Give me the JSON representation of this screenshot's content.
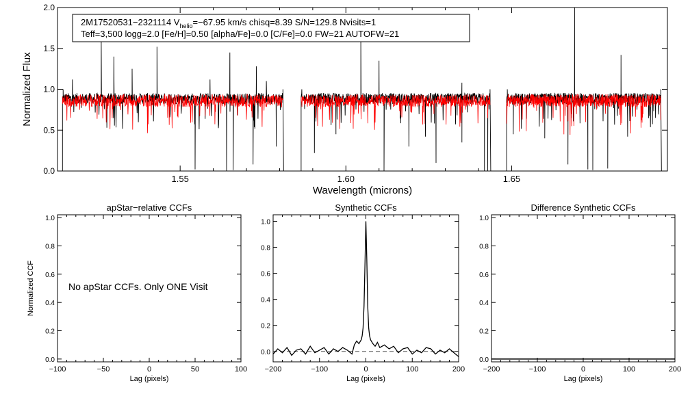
{
  "chart_data": [
    {
      "type": "line",
      "id": "spectrum",
      "ylabel": "Normalized Flux",
      "xlabel": "Wavelength (microns)",
      "xlim": [
        1.513,
        1.697
      ],
      "ylim": [
        0.0,
        2.0
      ],
      "xticks": [
        1.55,
        1.6,
        1.65
      ],
      "xtick_labels": [
        "1.55",
        "1.60",
        "1.65"
      ],
      "yticks": [
        0.0,
        0.5,
        1.0,
        1.5,
        2.0
      ],
      "ytick_labels": [
        "0.0",
        "0.5",
        "1.0",
        "1.5",
        "2.0"
      ],
      "chip_ranges": [
        [
          1.5145,
          1.581
        ],
        [
          1.5865,
          1.6435
        ],
        [
          1.6485,
          1.695
        ]
      ],
      "annotation": {
        "line1_pre": "2M17520531−2321114  V",
        "line1_sub": "helio",
        "line1_post": "=−67.95 km/s  chisq=8.39  S/N=129.8  Nvisits=1",
        "line2": "Teff=3,500 logg=2.0 [Fe/H]=0.50 [alpha/Fe]=0.0 [C/Fe]=0.0 FW=21 AUTOFW=21"
      },
      "series": [
        {
          "name": "observed spectrum",
          "color": "#000000",
          "continuum": 0.92,
          "noise": 0.06
        },
        {
          "name": "synthetic model",
          "color": "#ff0000",
          "continuum": 0.9,
          "noise": 0.07
        }
      ],
      "spikes": [
        [
          1.5175,
          1.12
        ],
        [
          1.5262,
          1.58
        ],
        [
          1.53,
          1.4
        ],
        [
          1.5355,
          1.25
        ],
        [
          1.543,
          1.52
        ],
        [
          1.559,
          1.12
        ],
        [
          1.565,
          1.45
        ],
        [
          1.573,
          1.28
        ],
        [
          1.576,
          1.1
        ],
        [
          1.6045,
          1.58
        ],
        [
          1.61,
          1.35
        ],
        [
          1.635,
          1.08
        ],
        [
          1.646,
          1.7
        ],
        [
          1.669,
          2.0
        ],
        [
          1.683,
          1.42
        ]
      ],
      "dips": [
        [
          1.5545,
          0.02
        ],
        [
          1.564,
          0.0
        ],
        [
          1.566,
          0.01
        ],
        [
          1.572,
          0.08
        ],
        [
          1.579,
          0.3
        ],
        [
          1.5905,
          0.22
        ],
        [
          1.597,
          0.45
        ],
        [
          1.6115,
          0.0
        ],
        [
          1.619,
          0.3
        ],
        [
          1.624,
          0.42
        ],
        [
          1.6272,
          0.1
        ],
        [
          1.635,
          0.35
        ],
        [
          1.6418,
          0.0
        ],
        [
          1.6428,
          0.0
        ],
        [
          1.6505,
          0.45
        ],
        [
          1.66,
          0.4
        ],
        [
          1.667,
          0.08
        ],
        [
          1.673,
          0.02
        ],
        [
          1.6745,
          0.01
        ],
        [
          1.679,
          0.03
        ],
        [
          1.685,
          0.42
        ]
      ]
    },
    {
      "type": "line",
      "id": "apstar",
      "title": "apStar−relative CCFs",
      "xlabel": "Lag (pixels)",
      "ylabel": "Normalized CCF",
      "xlim": [
        -100,
        100
      ],
      "ylim": [
        -0.02,
        1.02
      ],
      "xticks": [
        -100,
        -50,
        0,
        50,
        100
      ],
      "xtick_labels": [
        "−100",
        "−50",
        "0",
        "50",
        "100"
      ],
      "yticks": [
        0.0,
        0.2,
        0.4,
        0.6,
        0.8,
        1.0
      ],
      "ytick_labels": [
        "0.0",
        "0.2",
        "0.4",
        "0.6",
        "0.8",
        "1.0"
      ],
      "note": "No apStar CCFs.  Only ONE Visit",
      "series": []
    },
    {
      "type": "line",
      "id": "synthetic",
      "title": "Synthetic CCFs",
      "xlabel": "Lag (pixels)",
      "xlim": [
        -200,
        200
      ],
      "ylim": [
        -0.08,
        1.05
      ],
      "xticks": [
        -200,
        -100,
        0,
        100,
        200
      ],
      "xtick_labels": [
        "−200",
        "−100",
        "0",
        "100",
        "200"
      ],
      "yticks": [
        0.0,
        0.2,
        0.4,
        0.6,
        0.8,
        1.0
      ],
      "ytick_labels": [
        "0.0",
        "0.2",
        "0.4",
        "0.6",
        "0.8",
        "1.0"
      ],
      "baseline": 0.0,
      "series": [
        {
          "name": "CCF",
          "color": "#000000",
          "x": [
            -200,
            -190,
            -180,
            -170,
            -160,
            -150,
            -140,
            -130,
            -120,
            -110,
            -100,
            -90,
            -80,
            -70,
            -60,
            -50,
            -40,
            -30,
            -25,
            -20,
            -15,
            -10,
            -8,
            -6,
            -4,
            -2,
            0,
            2,
            4,
            6,
            8,
            10,
            15,
            20,
            25,
            30,
            40,
            50,
            60,
            70,
            80,
            90,
            100,
            110,
            120,
            130,
            140,
            150,
            160,
            170,
            180,
            190,
            200
          ],
          "y": [
            -0.02,
            0.02,
            -0.01,
            0.03,
            -0.03,
            0.01,
            0.02,
            -0.02,
            0.04,
            -0.01,
            0.01,
            0.03,
            -0.02,
            0.02,
            0.0,
            0.03,
            0.01,
            -0.02,
            0.05,
            0.08,
            0.06,
            0.09,
            0.12,
            0.18,
            0.35,
            0.65,
            1.0,
            0.7,
            0.35,
            0.18,
            0.12,
            0.09,
            0.06,
            0.04,
            0.07,
            0.03,
            0.05,
            0.02,
            0.04,
            -0.01,
            0.02,
            0.03,
            -0.02,
            0.01,
            -0.01,
            0.03,
            0.02,
            -0.02,
            0.01,
            -0.01,
            0.02,
            -0.01,
            -0.04
          ]
        }
      ]
    },
    {
      "type": "line",
      "id": "difference",
      "title": "Difference Synthetic CCFs",
      "xlabel": "Lag (pixels)",
      "xlim": [
        -200,
        200
      ],
      "ylim": [
        -0.02,
        1.02
      ],
      "xticks": [
        -200,
        -100,
        0,
        100,
        200
      ],
      "xtick_labels": [
        "−200",
        "−100",
        "0",
        "100",
        "200"
      ],
      "yticks": [
        0.0,
        0.2,
        0.4,
        0.6,
        0.8,
        1.0
      ],
      "ytick_labels": [
        "0.0",
        "0.2",
        "0.4",
        "0.6",
        "0.8",
        "1.0"
      ],
      "series": [
        {
          "name": "difference CCF",
          "color": "#000000",
          "x": [
            -200,
            200
          ],
          "y": [
            0.0,
            0.0
          ]
        }
      ]
    }
  ]
}
